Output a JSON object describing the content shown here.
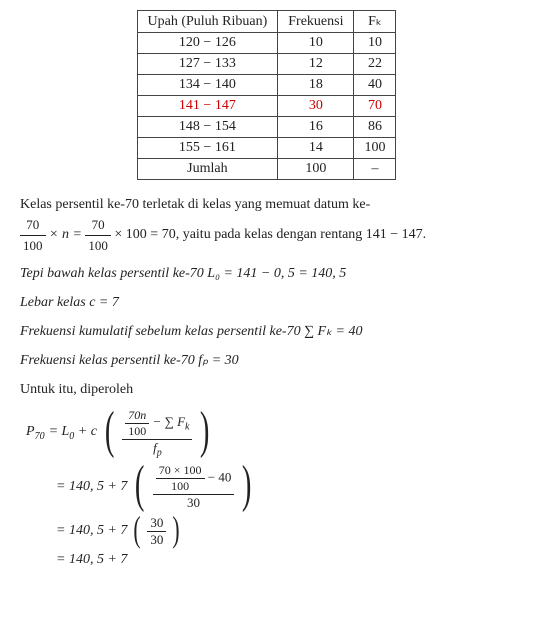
{
  "table": {
    "headers": [
      "Upah (Puluh Ribuan)",
      "Frekuensi",
      "Fₖ"
    ],
    "rows": [
      {
        "c0": "120 − 126",
        "c1": "10",
        "c2": "10",
        "hl": false
      },
      {
        "c0": "127 − 133",
        "c1": "12",
        "c2": "22",
        "hl": false
      },
      {
        "c0": "134 − 140",
        "c1": "18",
        "c2": "40",
        "hl": false
      },
      {
        "c0": "141 − 147",
        "c1": "30",
        "c2": "70",
        "hl": true
      },
      {
        "c0": "148 − 154",
        "c1": "16",
        "c2": "86",
        "hl": false
      },
      {
        "c0": "155 − 161",
        "c1": "14",
        "c2": "100",
        "hl": false
      }
    ],
    "footer": {
      "c0": "Jumlah",
      "c1": "100",
      "c2": "–"
    }
  },
  "p1a": "Kelas persentil ke-70 terletak di kelas yang memuat datum ke-",
  "p1_frac1_num": "70",
  "p1_frac1_den": "100",
  "p1_mid": " × n = ",
  "p1_frac2_num": "70",
  "p1_frac2_den": "100",
  "p1b": " × 100 = 70, yaitu pada kelas dengan rentang 141 − 147.",
  "p2": "Tepi bawah kelas persentil ke-70 L₀ = 141 − 0, 5 = 140, 5",
  "p3": "Lebar kelas c = 7",
  "p4": "Frekuensi kumulatif sebelum kelas persentil ke-70 ∑ Fₖ = 40",
  "p5": "Frekuensi kelas persentil ke-70 fₚ = 30",
  "p6": "Untuk itu, diperoleh",
  "eq": {
    "lhs": "P",
    "lhs_sub": "70",
    "eq1_a": "= L",
    "eq1_a_sub": "0",
    "eq1_b": " + c",
    "inner1_top_left_num": "70n",
    "inner1_top_left_den": "100",
    "inner1_top_right": " − ∑ F",
    "inner1_top_right_sub": "k",
    "inner1_den": "f",
    "inner1_den_sub": "p",
    "eq2_a": "= 140, 5 + 7",
    "inner2_top_left_num": "70 × 100",
    "inner2_top_left_den": "100",
    "inner2_top_right": " − 40",
    "inner2_den": "30",
    "eq3_a": "= 140, 5 + 7",
    "inner3_num": "30",
    "inner3_den": "30",
    "eq4": "= 140, 5 + 7"
  }
}
